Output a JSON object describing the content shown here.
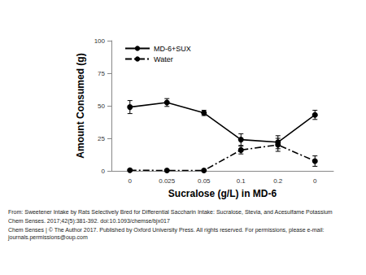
{
  "chart_data": {
    "type": "line",
    "xlabel": "Sucralose (g/L) in MD-6",
    "ylabel": "Amount Consumed (g)",
    "categories": [
      "0",
      "0.025",
      "0.05",
      "0.1",
      "0.2",
      "0"
    ],
    "series": [
      {
        "name": "MD-6+SUX",
        "color": "#000000",
        "marker": "circle",
        "line_style": "solid",
        "values": [
          49,
          52.5,
          44.5,
          24,
          22,
          43
        ],
        "errors": [
          5,
          3,
          2,
          4.5,
          5,
          3.5
        ]
      },
      {
        "name": "Water",
        "color": "#000000",
        "marker": "circle",
        "line_style": "dashdot",
        "values": [
          0.5,
          0.3,
          0.3,
          16,
          20,
          7.5
        ],
        "errors": [
          0.5,
          0.3,
          0.3,
          3,
          5,
          4
        ]
      }
    ],
    "ylim": [
      0,
      100
    ],
    "yticks": [
      0,
      25,
      50,
      75,
      100
    ],
    "grid": false,
    "legend": "upper left"
  },
  "footer": [
    "From: Sweetener Intake by Rats Selectively Bred for Differential Saccharin Intake: Sucralose, Stevia, and Acesulfame Potassium",
    "Chem Senses. 2017;42(5):381-392. doi:10.1093/chemse/bjx017",
    "Chem Senses | © The Author 2017. Published by Oxford University Press. All rights reserved. For permissions, please e-mail: journals.permissions@oup.com"
  ]
}
